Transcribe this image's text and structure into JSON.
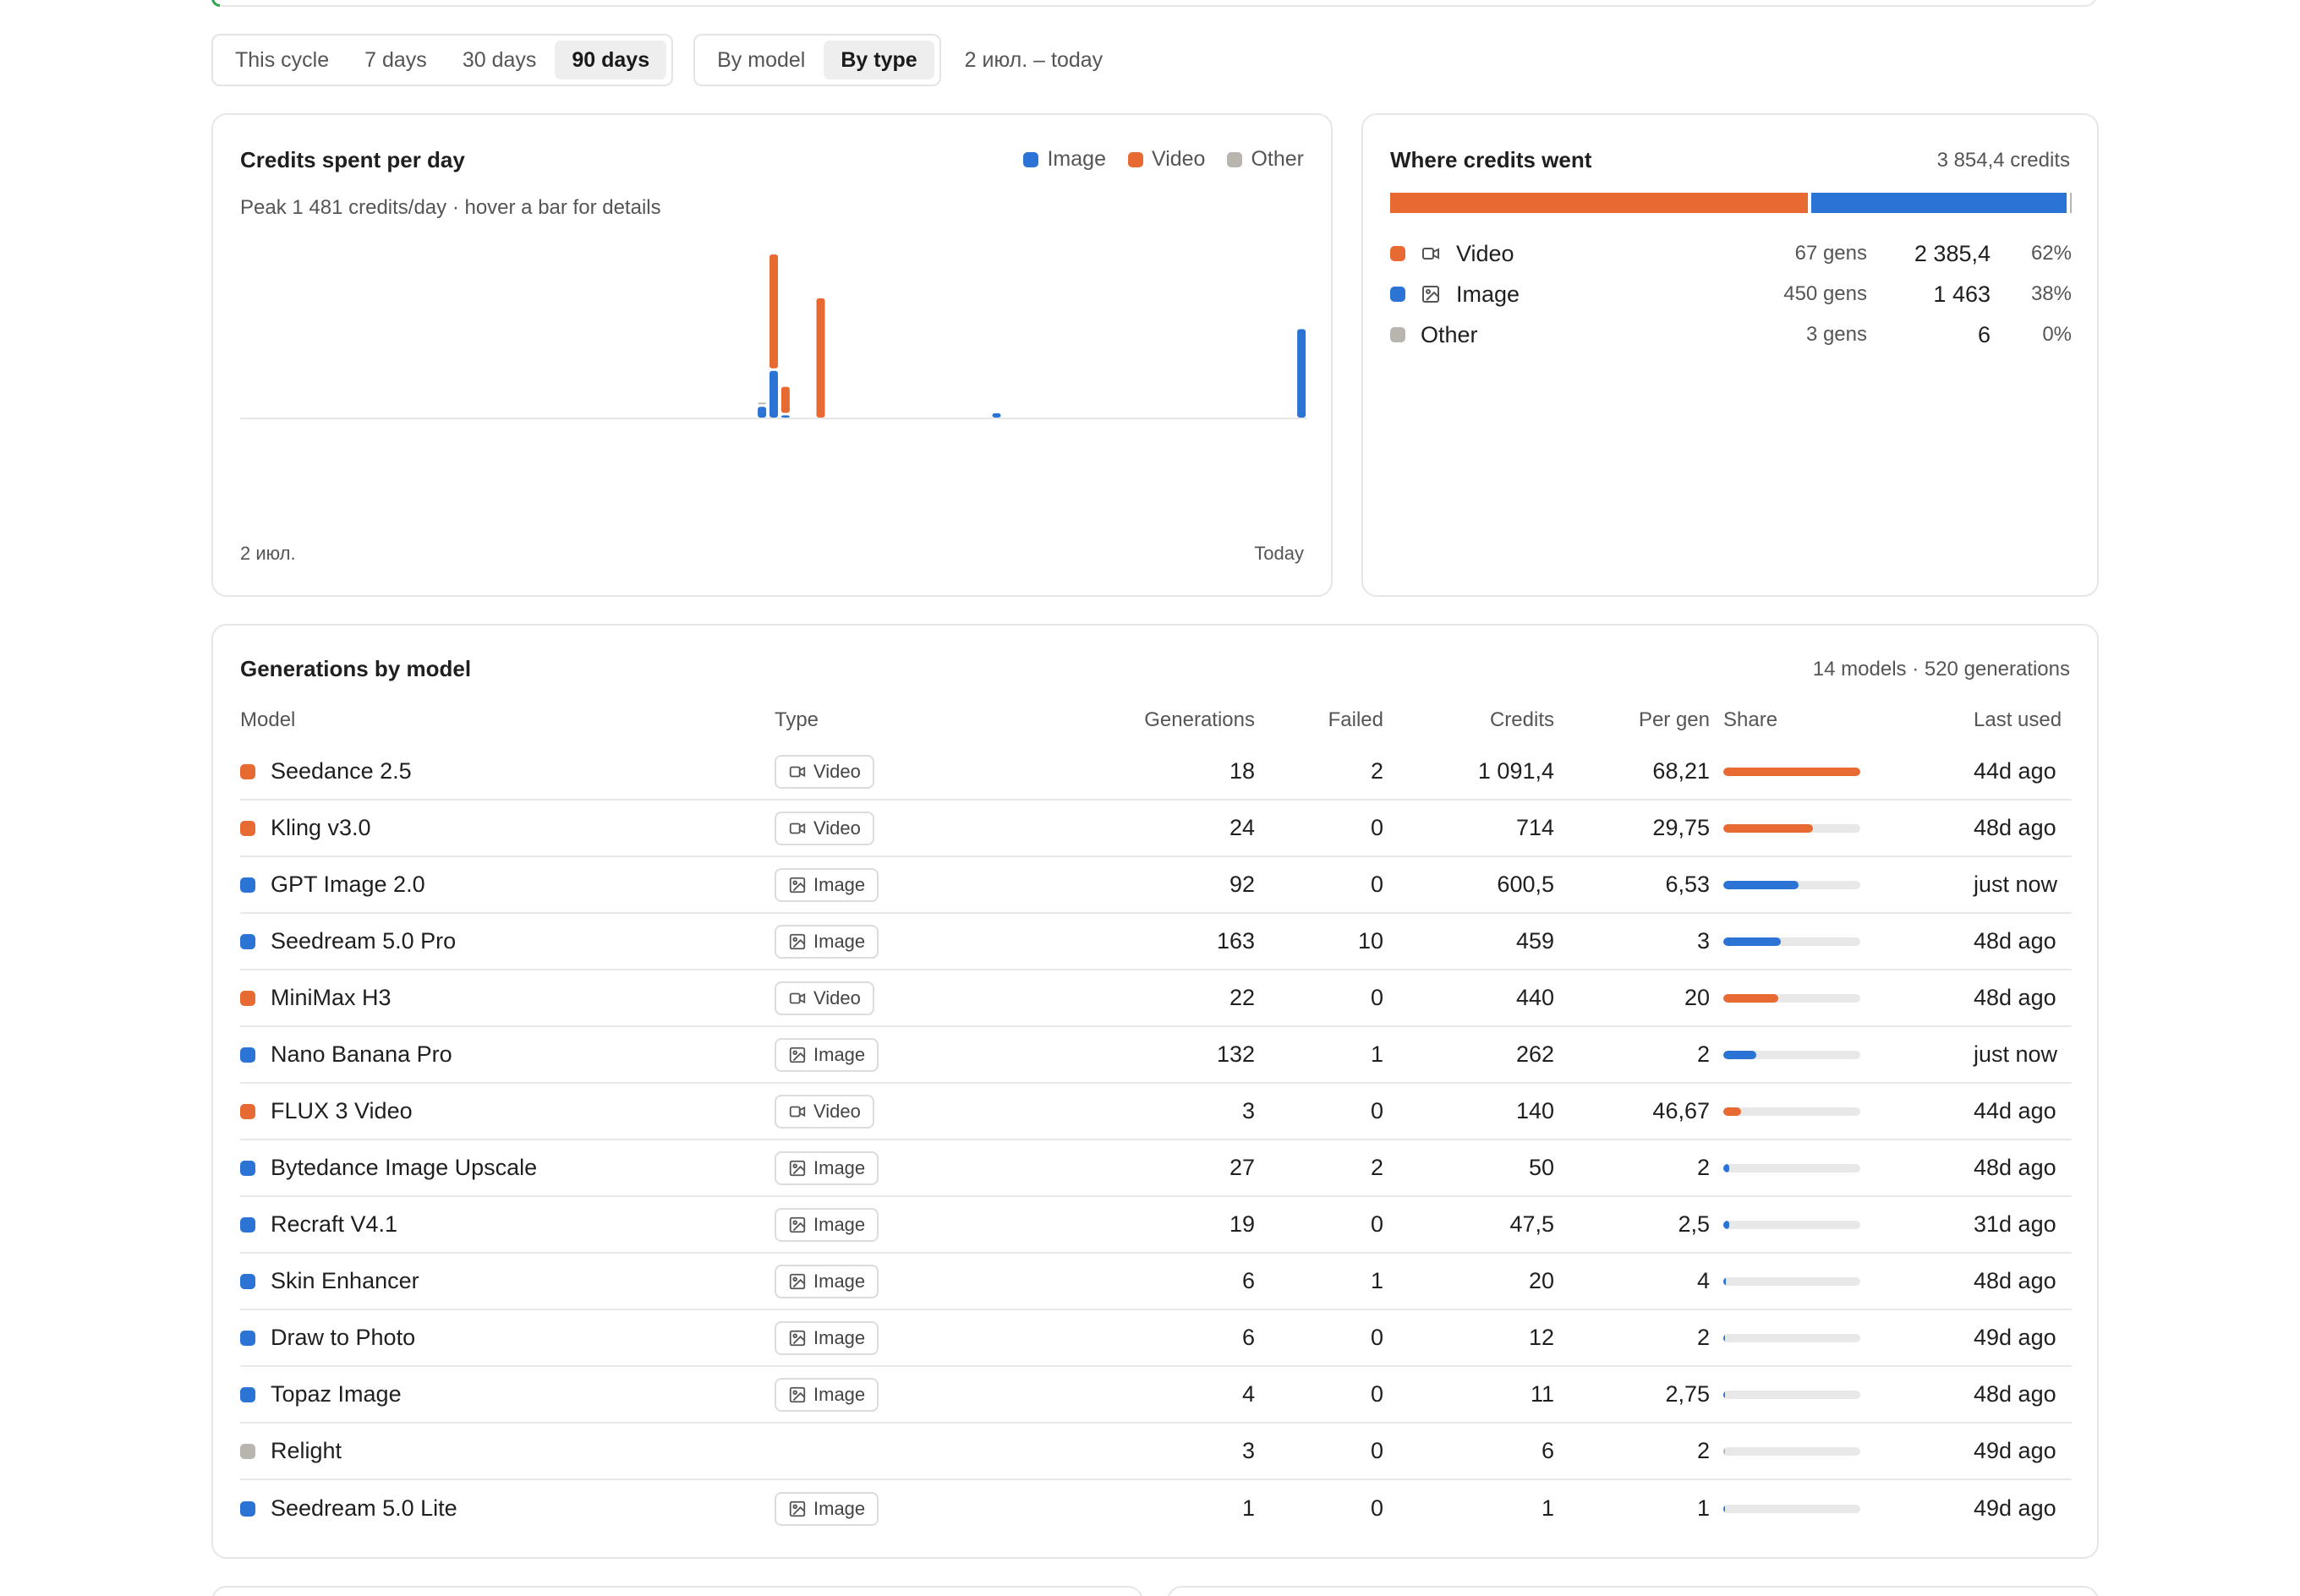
{
  "colors": {
    "image": "#2b74d6",
    "video": "#e86a33",
    "other": "#b8b4ae",
    "track": "#e8e8e8"
  },
  "toolbar": {
    "period_tabs": [
      "This cycle",
      "7 days",
      "30 days",
      "90 days"
    ],
    "period_active": "90 days",
    "group_tabs": [
      "By model",
      "By type"
    ],
    "group_active": "By type",
    "date_range": "2 июл. – today"
  },
  "spend_chart": {
    "title": "Credits spent per day",
    "subtitle": "Peak 1 481 credits/day · hover a bar for details",
    "legend": [
      "Image",
      "Video",
      "Other"
    ],
    "axis_start": "2 июл.",
    "axis_end": "Today"
  },
  "chart_data": {
    "type": "bar",
    "stacked": true,
    "title": "Credits spent per day",
    "x_start_label": "2 июл.",
    "x_end_label": "Today",
    "days": 91,
    "ylim": [
      0,
      1481
    ],
    "series": [
      {
        "name": "Image",
        "points": [
          {
            "day": 44,
            "value": 100
          },
          {
            "day": 45,
            "value": 430
          },
          {
            "day": 46,
            "value": 20
          },
          {
            "day": 64,
            "value": 40
          },
          {
            "day": 90,
            "value": 815
          }
        ]
      },
      {
        "name": "Video",
        "points": [
          {
            "day": 45,
            "value": 1051
          },
          {
            "day": 46,
            "value": 240
          },
          {
            "day": 49,
            "value": 1100
          }
        ]
      },
      {
        "name": "Other",
        "points": [
          {
            "day": 44,
            "value": 6
          }
        ]
      }
    ]
  },
  "where": {
    "title": "Where credits went",
    "total": "3 854,4 credits",
    "rows": [
      {
        "label": "Video",
        "icon": "video-icon",
        "color_key": "video",
        "gens": "67 gens",
        "credits": "2 385,4",
        "pct": "62%",
        "share": 0.619
      },
      {
        "label": "Image",
        "icon": "image-icon",
        "color_key": "image",
        "gens": "450 gens",
        "credits": "1 463",
        "pct": "38%",
        "share": 0.3796
      },
      {
        "label": "Other",
        "icon": "",
        "color_key": "other",
        "gens": "3 gens",
        "credits": "6",
        "pct": "0%",
        "share": 0.0016
      }
    ]
  },
  "models_table": {
    "title": "Generations by model",
    "meta": "14 models · 520 generations",
    "headers": {
      "model": "Model",
      "type": "Type",
      "generations": "Generations",
      "failed": "Failed",
      "credits": "Credits",
      "per_gen": "Per gen",
      "share": "Share",
      "last_used": "Last used"
    },
    "rows": [
      {
        "model": "Seedance 2.5",
        "type": "Video",
        "generations": "18",
        "failed": "2",
        "credits": "1 091,4",
        "per_gen": "68,21",
        "share": 1.0,
        "last_used": "44d ago"
      },
      {
        "model": "Kling v3.0",
        "type": "Video",
        "generations": "24",
        "failed": "0",
        "credits": "714",
        "per_gen": "29,75",
        "share": 0.654,
        "last_used": "48d ago"
      },
      {
        "model": "GPT Image 2.0",
        "type": "Image",
        "generations": "92",
        "failed": "0",
        "credits": "600,5",
        "per_gen": "6,53",
        "share": 0.55,
        "last_used": "just now"
      },
      {
        "model": "Seedream 5.0 Pro",
        "type": "Image",
        "generations": "163",
        "failed": "10",
        "credits": "459",
        "per_gen": "3",
        "share": 0.42,
        "last_used": "48d ago"
      },
      {
        "model": "MiniMax H3",
        "type": "Video",
        "generations": "22",
        "failed": "0",
        "credits": "440",
        "per_gen": "20",
        "share": 0.403,
        "last_used": "48d ago"
      },
      {
        "model": "Nano Banana Pro",
        "type": "Image",
        "generations": "132",
        "failed": "1",
        "credits": "262",
        "per_gen": "2",
        "share": 0.24,
        "last_used": "just now"
      },
      {
        "model": "FLUX 3 Video",
        "type": "Video",
        "generations": "3",
        "failed": "0",
        "credits": "140",
        "per_gen": "46,67",
        "share": 0.128,
        "last_used": "44d ago"
      },
      {
        "model": "Bytedance Image Upscale",
        "type": "Image",
        "generations": "27",
        "failed": "2",
        "credits": "50",
        "per_gen": "2",
        "share": 0.046,
        "last_used": "48d ago"
      },
      {
        "model": "Recraft V4.1",
        "type": "Image",
        "generations": "19",
        "failed": "0",
        "credits": "47,5",
        "per_gen": "2,5",
        "share": 0.044,
        "last_used": "31d ago"
      },
      {
        "model": "Skin Enhancer",
        "type": "Image",
        "generations": "6",
        "failed": "1",
        "credits": "20",
        "per_gen": "4",
        "share": 0.018,
        "last_used": "48d ago"
      },
      {
        "model": "Draw to Photo",
        "type": "Image",
        "generations": "6",
        "failed": "0",
        "credits": "12",
        "per_gen": "2",
        "share": 0.011,
        "last_used": "49d ago"
      },
      {
        "model": "Topaz Image",
        "type": "Image",
        "generations": "4",
        "failed": "0",
        "credits": "11",
        "per_gen": "2,75",
        "share": 0.01,
        "last_used": "48d ago"
      },
      {
        "model": "Relight",
        "type": "",
        "generations": "3",
        "failed": "0",
        "credits": "6",
        "per_gen": "2",
        "share": 0.0055,
        "last_used": "49d ago"
      },
      {
        "model": "Seedream 5.0 Lite",
        "type": "Image",
        "generations": "1",
        "failed": "0",
        "credits": "1",
        "per_gen": "1",
        "share": 0.001,
        "last_used": "49d ago"
      }
    ]
  }
}
